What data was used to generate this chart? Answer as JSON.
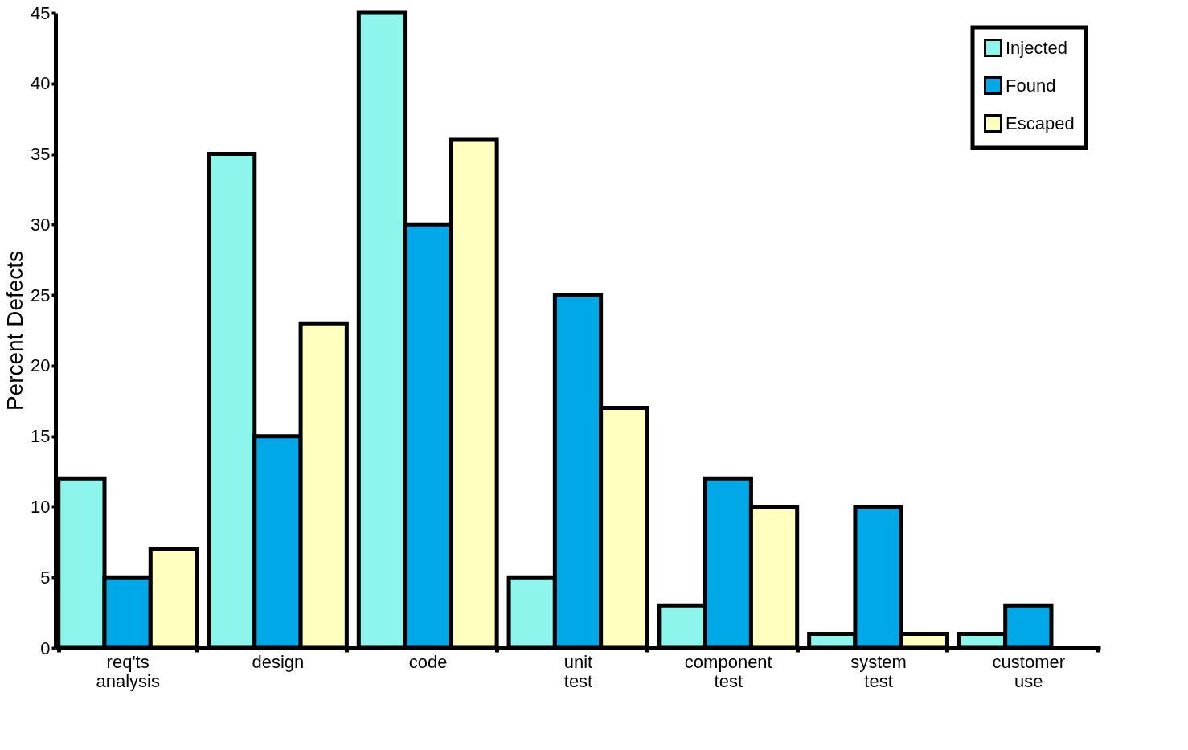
{
  "chart_data": {
    "type": "bar",
    "ylabel": "Percent Defects",
    "categories": [
      "req'ts analysis",
      "design",
      "code",
      "unit test",
      "component test",
      "system test",
      "customer use"
    ],
    "series": [
      {
        "name": "Injected",
        "color": "#8ef5ec",
        "values": [
          12,
          35,
          45,
          5,
          3,
          1,
          1
        ]
      },
      {
        "name": "Found",
        "color": "#00a8e8",
        "values": [
          5,
          15,
          30,
          25,
          12,
          10,
          3
        ]
      },
      {
        "name": "Escaped",
        "color": "#ffffc0",
        "values": [
          7,
          23,
          36,
          17,
          10,
          1,
          null
        ]
      }
    ],
    "ylim": [
      0,
      45
    ],
    "yticks": [
      0,
      5,
      10,
      15,
      20,
      25,
      30,
      35,
      40,
      45
    ],
    "grid": false,
    "legend": "top right"
  }
}
